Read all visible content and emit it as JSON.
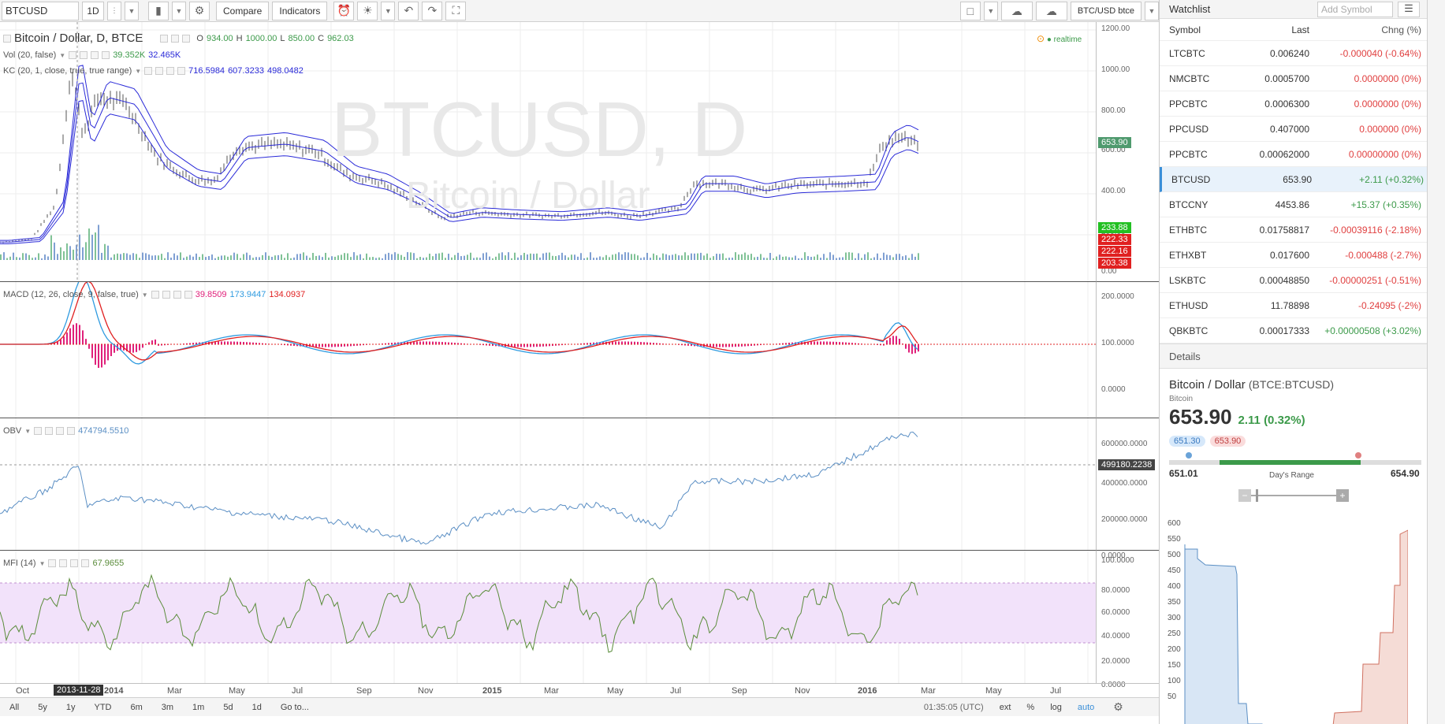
{
  "toolbar": {
    "symbol": "BTCUSD",
    "interval": "1D",
    "compare": "Compare",
    "indicators": "Indicators",
    "pair_label": "BTC/USD btce"
  },
  "main": {
    "title": "Bitcoin / Dollar, D, BTCE",
    "ohlc": {
      "o_label": "O",
      "o": "934.00",
      "h_label": "H",
      "h": "1000.00",
      "l_label": "L",
      "l": "850.00",
      "c_label": "C",
      "c": "962.03"
    },
    "vol_label": "Vol (20, false)",
    "vol_v1": "39.352K",
    "vol_v2": "32.465K",
    "kc_label": "KC (20, 1, close, true, true range)",
    "kc_v1": "716.5984",
    "kc_v2": "607.3233",
    "kc_v3": "498.0482",
    "realtime": "realtime",
    "watermark_big": "BTCUSD, D",
    "watermark_small": "Bitcoin / Dollar",
    "yticks": [
      "1200.00",
      "1000.00",
      "800.00",
      "600.00",
      "400.00",
      "200.00",
      "0.00"
    ],
    "price_tag": "653.90",
    "tags": [
      "233.88",
      "222.33",
      "222.16",
      "203.38"
    ]
  },
  "macd": {
    "label": "MACD (12, 26, close, 9, false, true)",
    "v1": "39.8509",
    "v2": "173.9447",
    "v3": "134.0937",
    "yticks": [
      "200.0000",
      "100.0000",
      "0.0000"
    ]
  },
  "obv": {
    "label": "OBV",
    "v1": "474794.5510",
    "yticks": [
      "600000.0000",
      "400000.0000",
      "200000.0000",
      "0.0000"
    ],
    "tag": "499180.2238"
  },
  "mfi": {
    "label": "MFI (14)",
    "v1": "67.9655",
    "yticks": [
      "100.0000",
      "80.0000",
      "60.0000",
      "40.0000",
      "20.0000",
      "0.0000"
    ]
  },
  "xaxis": {
    "labels": [
      "Oct",
      "2014",
      "Mar",
      "May",
      "Jul",
      "Sep",
      "Nov",
      "2015",
      "Mar",
      "May",
      "Jul",
      "Sep",
      "Nov",
      "2016",
      "Mar",
      "May",
      "Jul"
    ],
    "cursor_date": "2013-11-28"
  },
  "bottom": {
    "ranges": [
      "All",
      "5y",
      "1y",
      "YTD",
      "6m",
      "3m",
      "1m",
      "5d",
      "1d"
    ],
    "goto": "Go to...",
    "time": "01:35:05 (UTC)",
    "ext": "ext",
    "pct": "%",
    "log": "log",
    "auto": "auto"
  },
  "watchlist": {
    "title": "Watchlist",
    "search_placeholder": "Add Symbol",
    "col_symbol": "Symbol",
    "col_last": "Last",
    "col_chg": "Chng (%)",
    "rows": [
      {
        "sym": "LTCBTC",
        "last": "0.006240",
        "chg": "-0.000040 (-0.64%)",
        "dir": "neg"
      },
      {
        "sym": "NMCBTC",
        "last": "0.0005700",
        "chg": "0.0000000 (0%)",
        "dir": "neg"
      },
      {
        "sym": "PPCBTC",
        "last": "0.0006300",
        "chg": "0.0000000 (0%)",
        "dir": "neg"
      },
      {
        "sym": "PPCUSD",
        "last": "0.407000",
        "chg": "0.000000 (0%)",
        "dir": "neg"
      },
      {
        "sym": "PPCBTC",
        "last": "0.00062000",
        "chg": "0.00000000 (0%)",
        "dir": "neg"
      },
      {
        "sym": "BTCUSD",
        "last": "653.90",
        "chg": "+2.11 (+0.32%)",
        "dir": "pos"
      },
      {
        "sym": "BTCCNY",
        "last": "4453.86",
        "chg": "+15.37 (+0.35%)",
        "dir": "pos"
      },
      {
        "sym": "ETHBTC",
        "last": "0.01758817",
        "chg": "-0.00039116 (-2.18%)",
        "dir": "neg"
      },
      {
        "sym": "ETHXBT",
        "last": "0.017600",
        "chg": "-0.000488 (-2.7%)",
        "dir": "neg"
      },
      {
        "sym": "LSKBTC",
        "last": "0.00048850",
        "chg": "-0.00000251 (-0.51%)",
        "dir": "neg"
      },
      {
        "sym": "ETHUSD",
        "last": "11.78898",
        "chg": "-0.24095 (-2%)",
        "dir": "neg"
      },
      {
        "sym": "QBKBTC",
        "last": "0.00017333",
        "chg": "+0.00000508 (+3.02%)",
        "dir": "pos"
      }
    ]
  },
  "details": {
    "title": "Details",
    "name": "Bitcoin / Dollar",
    "exchange": "(BTCE:BTCUSD)",
    "sub": "Bitcoin",
    "price": "653.90",
    "change": "2.11 (0.32%)",
    "bid": "651.30",
    "ask": "653.90",
    "range_low": "651.01",
    "range_high": "654.90",
    "range_label": "Day's Range",
    "range_fill": 0.76,
    "depth_yticks": [
      "600",
      "550",
      "500",
      "450",
      "400",
      "350",
      "300",
      "250",
      "200",
      "150",
      "100",
      "50"
    ]
  },
  "colors": {
    "kc": "#2a2ad8",
    "macd": "#2f9be0",
    "signal": "#e02020",
    "hist": "#e0207a",
    "obv": "#5b8fc4",
    "mfi": "#5a8c3a",
    "mfi_band": "#f2e2fa"
  }
}
